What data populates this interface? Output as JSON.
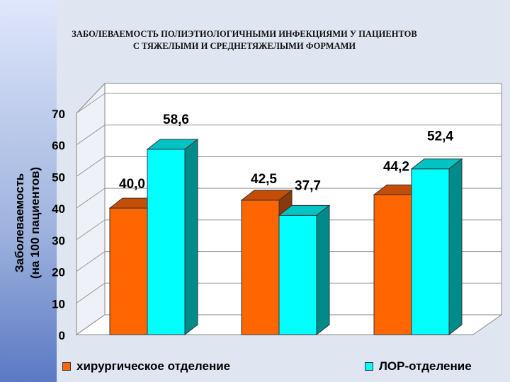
{
  "title": {
    "line1": "ЗАБОЛЕВАЕМОСТЬ ПОЛИЭТИОЛОГИЧНЫМИ ИНФЕКЦИЯМИ У ПАЦИЕНТОВ",
    "line2": "С ТЯЖЕЛЫМИ И СРЕДНЕТЯЖЕЛЫМИ ФОРМАМИ"
  },
  "chart_data": {
    "type": "bar",
    "categories": [
      "",
      "",
      ""
    ],
    "ylabel_line1": "Заболеваемость",
    "ylabel_line2": "(на 100 пациентов)",
    "ylim": [
      0,
      70
    ],
    "yticks": [
      0,
      10,
      20,
      30,
      40,
      50,
      60,
      70
    ],
    "grid": true,
    "legend_position": "bottom",
    "series": [
      {
        "name": "хирургическое отделение",
        "values": [
          40.0,
          42.5,
          44.2
        ],
        "labels": [
          "40,0",
          "42,5",
          "44,2"
        ],
        "color": "#ff6600",
        "top_color": "#c44e05",
        "side_color": "#8a3a08"
      },
      {
        "name": "ЛОР-отделение",
        "values": [
          58.6,
          37.7,
          52.4
        ],
        "labels": [
          "58,6",
          "37,7",
          "52,4"
        ],
        "color": "#00ffff",
        "top_color": "#00c4c4",
        "side_color": "#008b8b"
      }
    ]
  }
}
